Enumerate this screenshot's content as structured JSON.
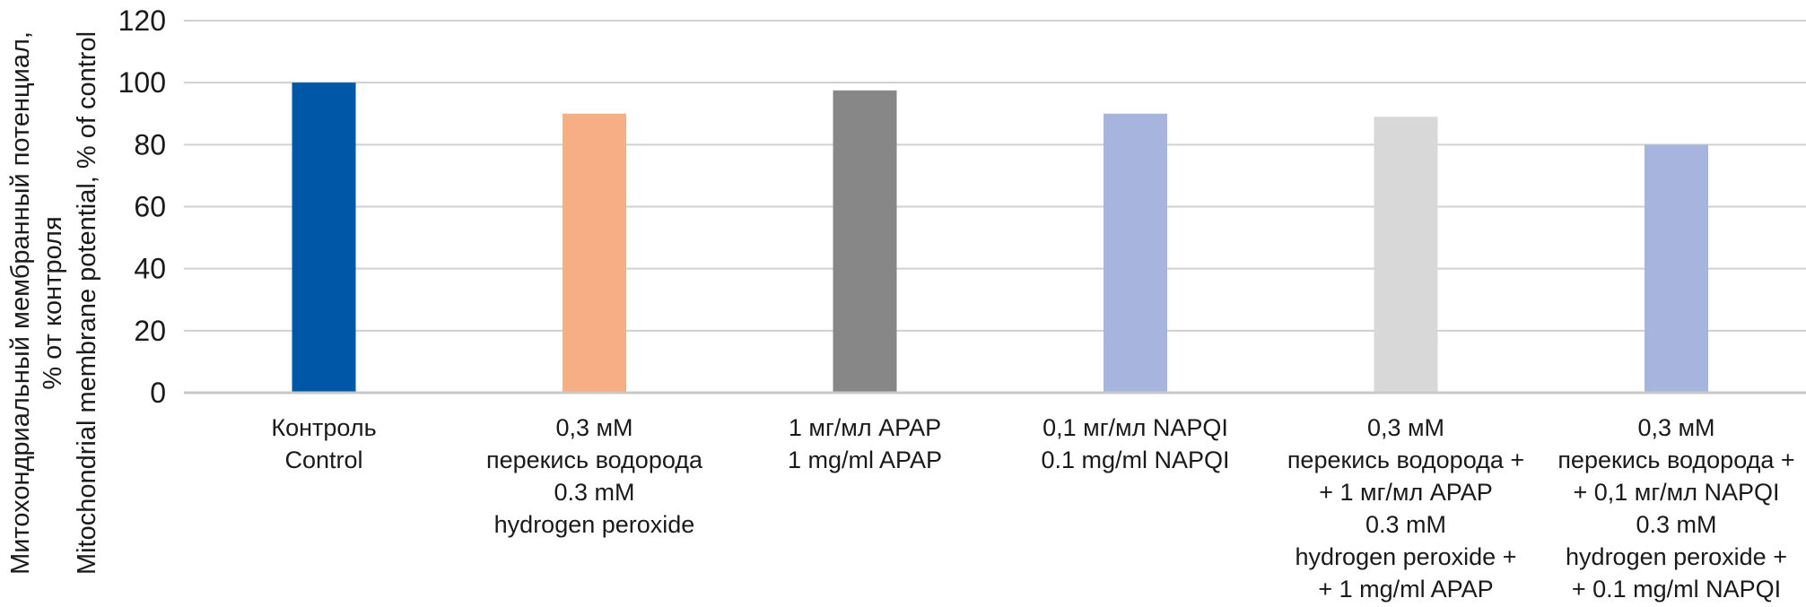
{
  "chart_data": {
    "type": "bar",
    "ylabel": [
      "Митохондриальный мембранный потенциал,",
      "% от контроля",
      "Mitochondrial membrane potential, % of control"
    ],
    "ylim": [
      0,
      120
    ],
    "yticks": [
      0,
      20,
      40,
      60,
      80,
      100,
      120
    ],
    "grid": true,
    "categories": [
      [
        "Контроль",
        "Control"
      ],
      [
        "0,3 мМ",
        "перекись водорода",
        "0.3 mM",
        "hydrogen peroxide"
      ],
      [
        "1 мг/мл APAP",
        "1 mg/ml APAP"
      ],
      [
        "0,1 мг/мл NAPQI",
        "0.1 mg/ml NAPQI"
      ],
      [
        "0,3 мМ",
        "перекись водорода +",
        "+ 1 мг/мл APAP",
        "0.3 mM",
        "hydrogen peroxide +",
        "+ 1 mg/ml APAP"
      ],
      [
        "0,3 мМ",
        "перекись водорода +",
        "+ 0,1 мг/мл NAPQI",
        "0.3 mM",
        "hydrogen peroxide +",
        "+ 0.1 mg/ml NAPQI"
      ]
    ],
    "values": [
      100,
      90,
      97.5,
      90,
      89,
      80
    ],
    "colors": [
      "#0057a8",
      "#f8ae84",
      "#878787",
      "#a7b4de",
      "#d8d8d8",
      "#a7b4de"
    ]
  }
}
